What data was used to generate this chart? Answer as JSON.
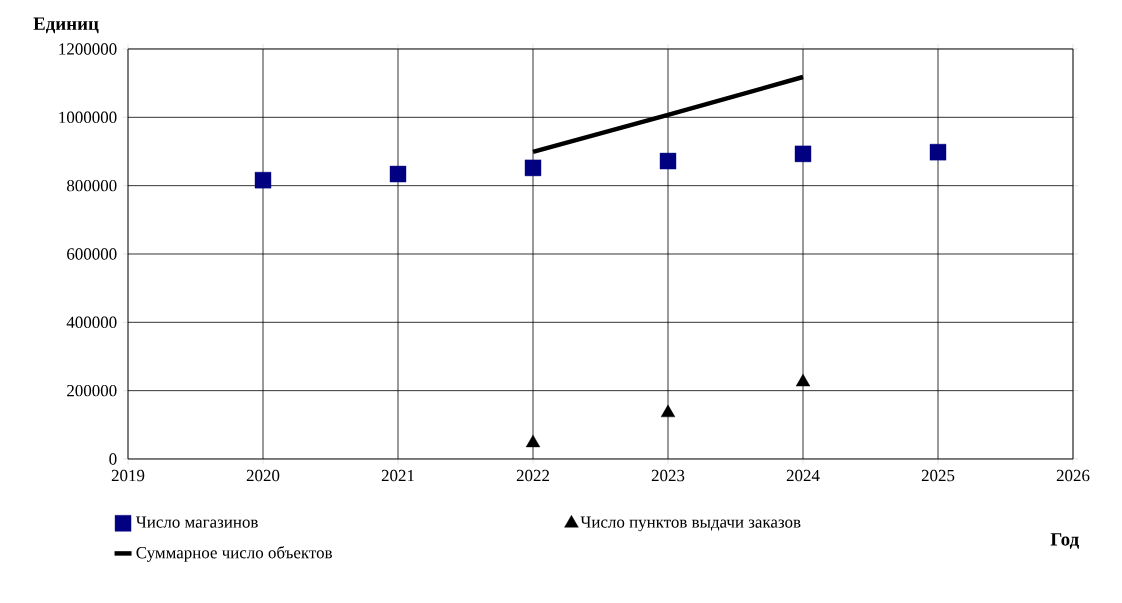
{
  "chart_data": {
    "type": "scatter",
    "xlabel": "Год",
    "ylabel": "Единиц",
    "x": [
      2020,
      2021,
      2022,
      2023,
      2024,
      2025
    ],
    "series": [
      {
        "name": "Число магазинов",
        "type": "scatter",
        "marker": "square",
        "color": "#000080",
        "values": [
          816000,
          834000,
          852000,
          872000,
          893000,
          898000
        ]
      },
      {
        "name": "Число пунктов выдачи заказов",
        "type": "scatter",
        "marker": "triangle",
        "color": "#000000",
        "values": [
          null,
          null,
          47000,
          135000,
          225000,
          null
        ]
      },
      {
        "name": "Суммарное число объектов",
        "type": "line",
        "marker": "none",
        "line_style": "solid",
        "color": "#000000",
        "values": [
          null,
          null,
          899000,
          1007000,
          1118000,
          null
        ]
      }
    ],
    "xlim": [
      2019,
      2026
    ],
    "xticks": [
      2019,
      2020,
      2021,
      2022,
      2023,
      2024,
      2025,
      2026
    ],
    "ylim": [
      0,
      1200000
    ],
    "yticks": [
      0,
      200000,
      400000,
      600000,
      800000,
      1000000,
      1200000
    ],
    "grid": true,
    "legend": "bottom"
  }
}
